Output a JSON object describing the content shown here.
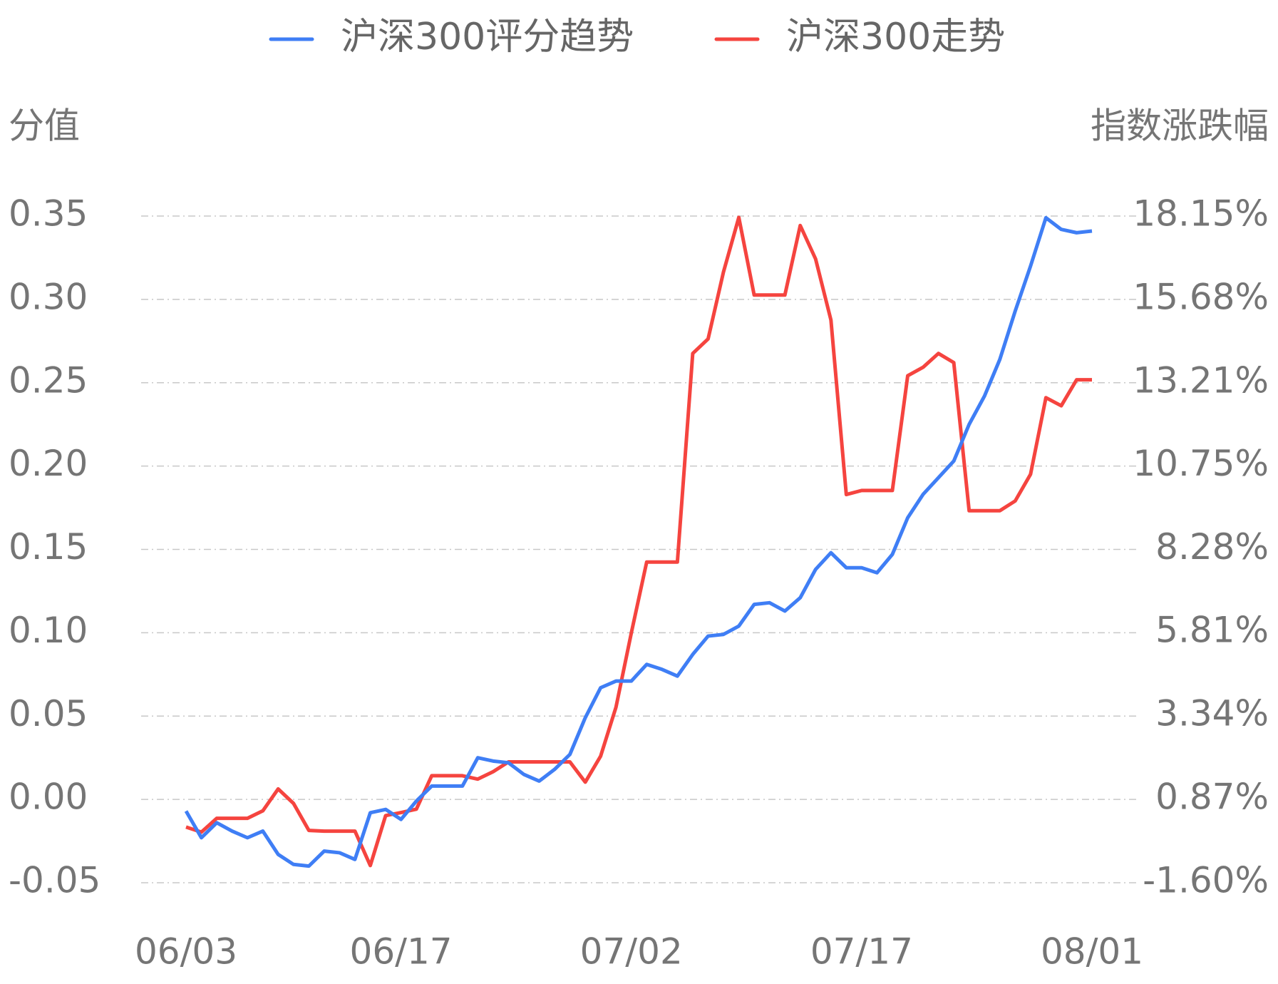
{
  "chart_data": {
    "type": "line",
    "categories": [
      "06/03",
      null,
      null,
      null,
      null,
      null,
      null,
      null,
      null,
      null,
      null,
      null,
      null,
      null,
      "06/17",
      null,
      null,
      null,
      null,
      null,
      null,
      null,
      null,
      null,
      null,
      null,
      null,
      null,
      null,
      "07/02",
      null,
      null,
      null,
      null,
      null,
      null,
      null,
      null,
      null,
      null,
      null,
      null,
      null,
      null,
      "07/17",
      null,
      null,
      null,
      null,
      null,
      null,
      null,
      null,
      null,
      null,
      null,
      null,
      null,
      null,
      "08/01"
    ],
    "y_label": "分值",
    "y2_label": "指数涨跌幅",
    "ylim": [
      -0.05,
      0.35
    ],
    "yticks": [
      -0.05,
      {
        "value": 0,
        "label": "0.00"
      },
      0.05,
      {
        "value": 0.1,
        "label": "0.10"
      },
      0.15,
      {
        "value": 0.2,
        "label": "0.20"
      },
      0.25,
      {
        "value": 0.3,
        "label": "0.30"
      },
      0.35
    ],
    "y2lim": [
      -1.6,
      18.15
    ],
    "y2ticks": [
      {
        "value": -1.6,
        "label": "-1.60%"
      },
      {
        "value": 0.87,
        "label": "0.87%"
      },
      {
        "value": 3.34,
        "label": "3.34%"
      },
      {
        "value": 5.81,
        "label": "5.81%"
      },
      {
        "value": 8.28,
        "label": "8.28%"
      },
      {
        "value": 10.75,
        "label": "10.75%"
      },
      {
        "value": 13.21,
        "label": "13.21%"
      },
      {
        "value": 15.68,
        "label": "15.68%"
      },
      {
        "value": 18.15,
        "label": "18.15%"
      }
    ],
    "grid": true,
    "series": [
      {
        "name": "沪深300评分趋势",
        "color": "#3f7ef5",
        "values": [
          -0.007,
          -0.023,
          -0.014,
          -0.019,
          -0.023,
          -0.019,
          -0.033,
          -0.039,
          -0.04,
          -0.031,
          -0.032,
          -0.036,
          -0.008,
          -0.006,
          -0.012,
          -0.001,
          0.008,
          0.008,
          0.008,
          0.025,
          0.023,
          0.022,
          0.015,
          0.011,
          0.018,
          0.027,
          0.049,
          0.067,
          0.071,
          0.071,
          0.081,
          0.078,
          0.074,
          0.087,
          0.098,
          0.099,
          0.104,
          0.117,
          0.118,
          0.113,
          0.121,
          0.138,
          0.148,
          0.139,
          0.139,
          0.136,
          0.147,
          0.169,
          0.183,
          0.193,
          0.203,
          0.225,
          0.242,
          0.264,
          0.293,
          0.32,
          0.349,
          0.342,
          0.34,
          0.341
        ]
      },
      {
        "name": "沪深300走势",
        "color": "#f5443f",
        "axis": "y2",
        "values": [
          0.05,
          -0.1,
          0.31,
          0.31,
          0.31,
          0.53,
          1.18,
          0.75,
          -0.05,
          -0.07,
          -0.07,
          -0.07,
          -1.09,
          0.39,
          0.48,
          0.58,
          1.57,
          1.57,
          1.57,
          1.47,
          1.69,
          1.98,
          1.98,
          1.98,
          1.98,
          1.98,
          1.38,
          2.15,
          3.6,
          5.8,
          7.9,
          7.9,
          7.9,
          14.08,
          14.51,
          16.49,
          18.11,
          15.81,
          15.81,
          15.81,
          17.87,
          16.88,
          15.07,
          9.9,
          10.02,
          10.02,
          10.02,
          13.42,
          13.67,
          14.08,
          13.81,
          9.42,
          9.42,
          9.42,
          9.71,
          10.5,
          12.77,
          12.53,
          13.3,
          13.3
        ]
      }
    ]
  }
}
